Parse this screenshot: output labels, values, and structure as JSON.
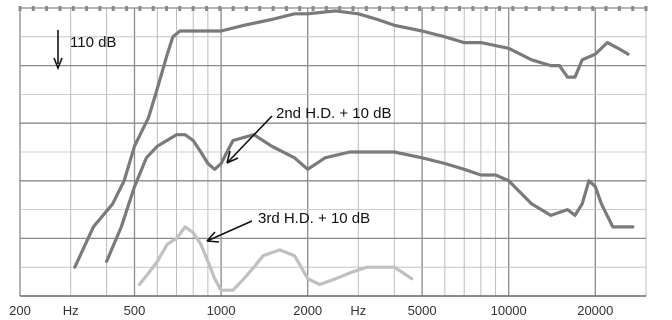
{
  "chart_data": {
    "type": "line",
    "title": "",
    "xlabel": "",
    "ylabel": "",
    "x_scale": "log",
    "xlim": [
      200,
      30000
    ],
    "x_ticks": [
      {
        "value": 200,
        "label": "200"
      },
      {
        "value": 300,
        "label": "Hz"
      },
      {
        "value": 500,
        "label": "500"
      },
      {
        "value": 1000,
        "label": "1000"
      },
      {
        "value": 2000,
        "label": "2000"
      },
      {
        "value": 3000,
        "label": "Hz"
      },
      {
        "value": 5000,
        "label": "5000"
      },
      {
        "value": 10000,
        "label": "10000"
      },
      {
        "value": 20000,
        "label": "20000"
      }
    ],
    "ylim": [
      0,
      50
    ],
    "y_unit": "dB",
    "grid": true,
    "series": [
      {
        "name": "",
        "color": "#7a7a7a",
        "points": [
          [
            310,
            5
          ],
          [
            360,
            12
          ],
          [
            420,
            16
          ],
          [
            460,
            20
          ],
          [
            500,
            26
          ],
          [
            560,
            31
          ],
          [
            600,
            36
          ],
          [
            650,
            42
          ],
          [
            680,
            45
          ],
          [
            720,
            46
          ],
          [
            760,
            46
          ],
          [
            800,
            46
          ],
          [
            900,
            46
          ],
          [
            1000,
            46
          ],
          [
            1200,
            47
          ],
          [
            1500,
            48
          ],
          [
            1800,
            49
          ],
          [
            2000,
            49
          ],
          [
            2500,
            49.5
          ],
          [
            3000,
            49
          ],
          [
            3500,
            48
          ],
          [
            4000,
            47
          ],
          [
            5000,
            46
          ],
          [
            6000,
            45
          ],
          [
            7000,
            44
          ],
          [
            8000,
            44
          ],
          [
            10000,
            43
          ],
          [
            12000,
            41
          ],
          [
            14000,
            40
          ],
          [
            15000,
            40
          ],
          [
            16000,
            38
          ],
          [
            17000,
            38
          ],
          [
            18000,
            41
          ],
          [
            20000,
            42
          ],
          [
            22000,
            44
          ],
          [
            24000,
            43
          ],
          [
            26000,
            42
          ]
        ]
      },
      {
        "name": "2nd H.D. + 10 dB",
        "color": "#7a7a7a",
        "points": [
          [
            400,
            6
          ],
          [
            450,
            12
          ],
          [
            500,
            19
          ],
          [
            550,
            24
          ],
          [
            600,
            26
          ],
          [
            700,
            28
          ],
          [
            750,
            28
          ],
          [
            800,
            27
          ],
          [
            850,
            25
          ],
          [
            900,
            23
          ],
          [
            950,
            22
          ],
          [
            1000,
            23
          ],
          [
            1100,
            27
          ],
          [
            1300,
            28
          ],
          [
            1500,
            26
          ],
          [
            1800,
            24
          ],
          [
            2000,
            22
          ],
          [
            2300,
            24
          ],
          [
            2800,
            25
          ],
          [
            3300,
            25
          ],
          [
            4000,
            25
          ],
          [
            5000,
            24
          ],
          [
            6000,
            23
          ],
          [
            7000,
            22
          ],
          [
            8000,
            21
          ],
          [
            9000,
            21
          ],
          [
            10000,
            20
          ],
          [
            12000,
            16
          ],
          [
            14000,
            14
          ],
          [
            16000,
            15
          ],
          [
            17000,
            14
          ],
          [
            18000,
            16
          ],
          [
            19000,
            20
          ],
          [
            20000,
            19
          ],
          [
            21000,
            16
          ],
          [
            23000,
            12
          ],
          [
            25000,
            12
          ],
          [
            27000,
            12
          ]
        ]
      },
      {
        "name": "3rd H.D. + 10 dB",
        "color": "#c0c0c0",
        "points": [
          [
            520,
            2
          ],
          [
            560,
            4
          ],
          [
            600,
            6
          ],
          [
            650,
            9
          ],
          [
            700,
            10
          ],
          [
            750,
            12
          ],
          [
            800,
            11
          ],
          [
            850,
            9
          ],
          [
            900,
            6
          ],
          [
            950,
            3
          ],
          [
            1000,
            1
          ],
          [
            1100,
            1
          ],
          [
            1200,
            3
          ],
          [
            1300,
            5
          ],
          [
            1400,
            7
          ],
          [
            1600,
            8
          ],
          [
            1800,
            7
          ],
          [
            1900,
            5
          ],
          [
            2000,
            3
          ],
          [
            2200,
            2
          ],
          [
            2500,
            3
          ],
          [
            2800,
            4
          ],
          [
            3200,
            5
          ],
          [
            3600,
            5
          ],
          [
            4000,
            5
          ],
          [
            4300,
            4
          ],
          [
            4600,
            3
          ]
        ]
      }
    ],
    "annotations": [
      {
        "text": "110 dB",
        "arrow": "down"
      },
      {
        "text": "2nd H.D. + 10 dB"
      },
      {
        "text": "3rd H.D. + 10 dB"
      }
    ]
  }
}
